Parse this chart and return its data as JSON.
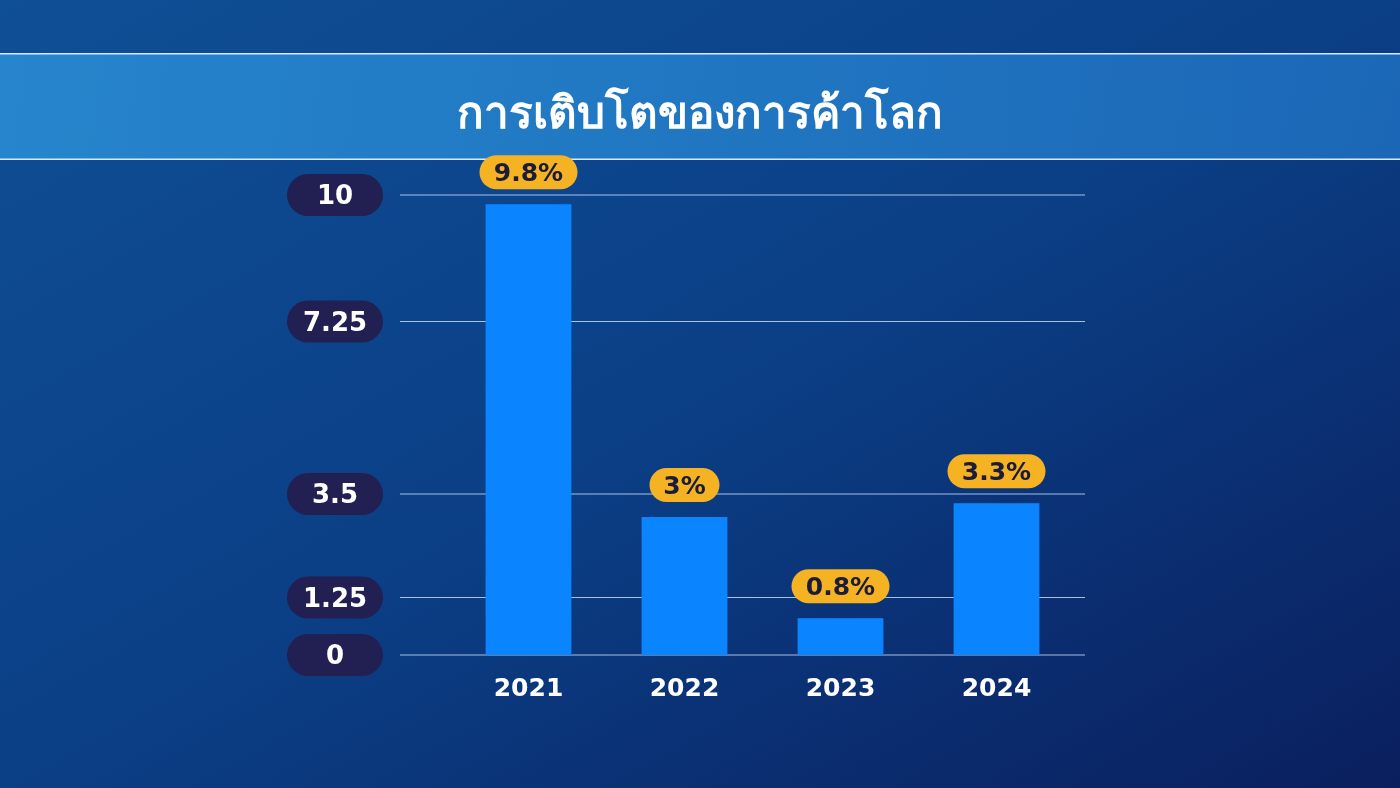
{
  "chart_data": {
    "type": "bar",
    "title": "การเติบโตของการค้าโลก",
    "categories": [
      "2021",
      "2022",
      "2023",
      "2024"
    ],
    "values": [
      9.8,
      3,
      0.8,
      3.3
    ],
    "value_labels": [
      "9.8%",
      "3%",
      "0.8%",
      "3.3%"
    ],
    "color": "#0a84ff",
    "ylim": [
      0,
      10
    ],
    "yticks": [
      0,
      1.25,
      3.5,
      7.25,
      10
    ],
    "grid": "y"
  }
}
